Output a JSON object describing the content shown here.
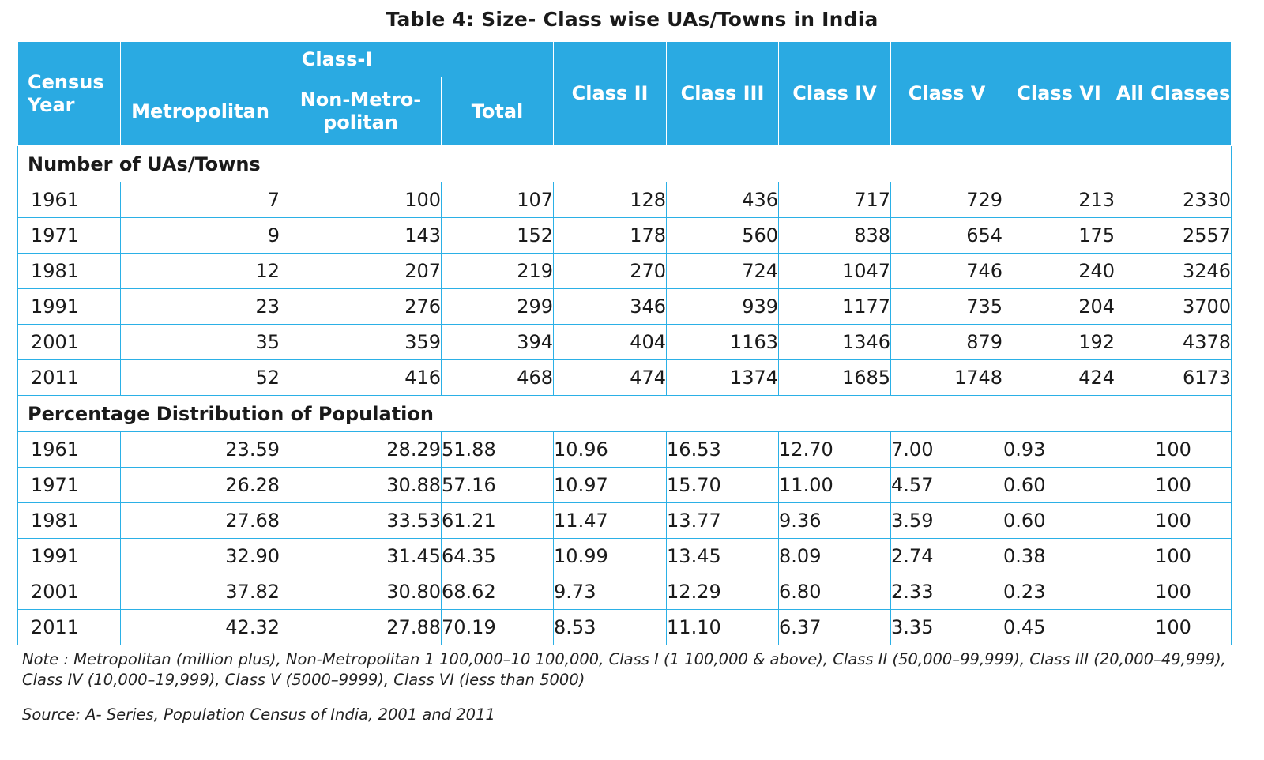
{
  "title": "Table 4: Size- Class wise UAs/Towns in India",
  "colors": {
    "header_bg": "#2aaae2",
    "border": "#2bb0e6",
    "header_text": "#ffffff"
  },
  "headers": {
    "census_year": "Census Year",
    "class1": "Class-I",
    "metropolitan": "Metropolitan",
    "non_metropolitan": "Non-Metro-politan",
    "total": "Total",
    "class2": "Class II",
    "class3": "Class III",
    "class4": "Class IV",
    "class5": "Class V",
    "class6": "Class VI",
    "all_classes": "All Classes"
  },
  "sections": {
    "number": {
      "label": "Number of UAs/Towns",
      "rows": [
        [
          "1961",
          "7",
          "100",
          "107",
          "128",
          "436",
          "717",
          "729",
          "213",
          "2330"
        ],
        [
          "1971",
          "9",
          "143",
          "152",
          "178",
          "560",
          "838",
          "654",
          "175",
          "2557"
        ],
        [
          "1981",
          "12",
          "207",
          "219",
          "270",
          "724",
          "1047",
          "746",
          "240",
          "3246"
        ],
        [
          "1991",
          "23",
          "276",
          "299",
          "346",
          "939",
          "1177",
          "735",
          "204",
          "3700"
        ],
        [
          "2001",
          "35",
          "359",
          "394",
          "404",
          "1163",
          "1346",
          "879",
          "192",
          "4378"
        ],
        [
          "2011",
          "52",
          "416",
          "468",
          "474",
          "1374",
          "1685",
          "1748",
          "424",
          "6173"
        ]
      ]
    },
    "percentage": {
      "label": "Percentage Distribution of Population",
      "rows": [
        [
          "1961",
          "23.59",
          "28.29",
          "51.88",
          "10.96",
          "16.53",
          "12.70",
          "7.00",
          "0.93",
          "100"
        ],
        [
          "1971",
          "26.28",
          "30.88",
          "57.16",
          "10.97",
          "15.70",
          "11.00",
          "4.57",
          "0.60",
          "100"
        ],
        [
          "1981",
          "27.68",
          "33.53",
          "61.21",
          "11.47",
          "13.77",
          "9.36",
          "3.59",
          "0.60",
          "100"
        ],
        [
          "1991",
          "32.90",
          "31.45",
          "64.35",
          "10.99",
          "13.45",
          "8.09",
          "2.74",
          "0.38",
          "100"
        ],
        [
          "2001",
          "37.82",
          "30.80",
          "68.62",
          "9.73",
          "12.29",
          "6.80",
          "2.33",
          "0.23",
          "100"
        ],
        [
          "2011",
          "42.32",
          "27.88",
          "70.19",
          "8.53",
          "11.10",
          "6.37",
          "3.35",
          "0.45",
          "100"
        ]
      ]
    }
  },
  "note": "Note : Metropolitan (million plus), Non-Metropolitan 1 100,000–10 100,000, Class I (1 100,000 & above), Class II (50,000–99,999), Class III (20,000–49,999), Class IV (10,000–19,999), Class V (5000–9999), Class VI (less than 5000)",
  "source": "Source: A- Series, Population Census of India, 2001 and 2011"
}
